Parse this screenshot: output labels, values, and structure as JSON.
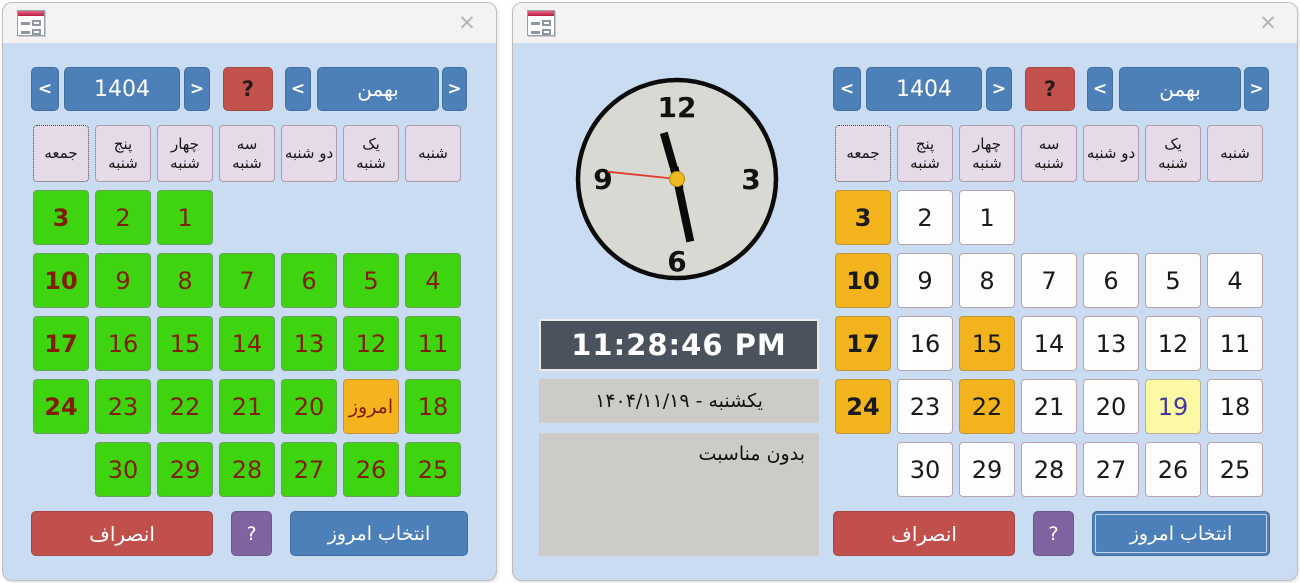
{
  "colors": {
    "window_bg": "#cadcf2",
    "titlebar_bg": "#f4f3f1",
    "accent_blue": "#4d80b8",
    "accent_red": "#c4524c",
    "accent_purple": "#8064a2",
    "green_day": "#3ed40f",
    "orange_day": "#f2b31c",
    "today_yellow": "#fbf8a4",
    "header_lavender": "#e5dae7",
    "digital_bg": "#4a525d",
    "gray_panel": "#cccbc7",
    "maroon_text": "#821d02"
  },
  "window_a": {
    "titlebar": {
      "icon": "form-window-icon",
      "close_glyph": "✕"
    },
    "selector": {
      "prev_year": "<",
      "year": "1404",
      "next_year": ">",
      "help": "?",
      "prev_month": "<",
      "month": "بهمن",
      "next_month": ">"
    },
    "weekdays": [
      {
        "label": "جمعه",
        "focused": true
      },
      {
        "label": "پنج شنبه"
      },
      {
        "label": "چهار شنبه"
      },
      {
        "label": "سه شنبه"
      },
      {
        "label": "دو شنبه"
      },
      {
        "label": "یک شنبه"
      },
      {
        "label": "شنبه"
      }
    ],
    "days": [
      {
        "row": 1,
        "col": 1,
        "label": "3",
        "kind": "friday"
      },
      {
        "row": 1,
        "col": 2,
        "label": "2"
      },
      {
        "row": 1,
        "col": 3,
        "label": "1"
      },
      {
        "row": 2,
        "col": 1,
        "label": "10",
        "kind": "friday"
      },
      {
        "row": 2,
        "col": 2,
        "label": "9"
      },
      {
        "row": 2,
        "col": 3,
        "label": "8"
      },
      {
        "row": 2,
        "col": 4,
        "label": "7"
      },
      {
        "row": 2,
        "col": 5,
        "label": "6"
      },
      {
        "row": 2,
        "col": 6,
        "label": "5"
      },
      {
        "row": 2,
        "col": 7,
        "label": "4"
      },
      {
        "row": 3,
        "col": 1,
        "label": "17",
        "kind": "friday"
      },
      {
        "row": 3,
        "col": 2,
        "label": "16"
      },
      {
        "row": 3,
        "col": 3,
        "label": "15"
      },
      {
        "row": 3,
        "col": 4,
        "label": "14"
      },
      {
        "row": 3,
        "col": 5,
        "label": "13"
      },
      {
        "row": 3,
        "col": 6,
        "label": "12"
      },
      {
        "row": 3,
        "col": 7,
        "label": "11"
      },
      {
        "row": 4,
        "col": 1,
        "label": "24",
        "kind": "friday"
      },
      {
        "row": 4,
        "col": 2,
        "label": "23"
      },
      {
        "row": 4,
        "col": 3,
        "label": "22"
      },
      {
        "row": 4,
        "col": 4,
        "label": "21"
      },
      {
        "row": 4,
        "col": 5,
        "label": "20"
      },
      {
        "row": 4,
        "col": 6,
        "label": "امروز",
        "kind": "today"
      },
      {
        "row": 4,
        "col": 7,
        "label": "18"
      },
      {
        "row": 5,
        "col": 2,
        "label": "30"
      },
      {
        "row": 5,
        "col": 3,
        "label": "29"
      },
      {
        "row": 5,
        "col": 4,
        "label": "28"
      },
      {
        "row": 5,
        "col": 5,
        "label": "27"
      },
      {
        "row": 5,
        "col": 6,
        "label": "26"
      },
      {
        "row": 5,
        "col": 7,
        "label": "25"
      }
    ],
    "footer": {
      "cancel": "انصراف",
      "help": "?",
      "select_today": "انتخاب امروز"
    }
  },
  "window_b": {
    "titlebar": {
      "icon": "form-window-icon",
      "close_glyph": "✕"
    },
    "clock": {
      "numbers": [
        "12",
        "3",
        "6",
        "9"
      ],
      "hands": {
        "hour_deg": 344,
        "minute_deg": 168,
        "second_deg": 276
      },
      "time": "11:28:46 PM",
      "date": "یکشنبه - ۱۴۰۴/۱۱/۱۹",
      "occasion": "بدون مناسبت"
    },
    "selector": {
      "prev_year": "<",
      "year": "1404",
      "next_year": ">",
      "help": "?",
      "prev_month": "<",
      "month": "بهمن",
      "next_month": ">"
    },
    "weekdays": [
      {
        "label": "جمعه",
        "focused": true
      },
      {
        "label": "پنج شنبه"
      },
      {
        "label": "چهار شنبه"
      },
      {
        "label": "سه شنبه"
      },
      {
        "label": "دو شنبه"
      },
      {
        "label": "یک شنبه"
      },
      {
        "label": "شنبه"
      }
    ],
    "days": [
      {
        "row": 1,
        "col": 1,
        "label": "3",
        "kind": "friday"
      },
      {
        "row": 1,
        "col": 2,
        "label": "2"
      },
      {
        "row": 1,
        "col": 3,
        "label": "1"
      },
      {
        "row": 2,
        "col": 1,
        "label": "10",
        "kind": "friday"
      },
      {
        "row": 2,
        "col": 2,
        "label": "9"
      },
      {
        "row": 2,
        "col": 3,
        "label": "8"
      },
      {
        "row": 2,
        "col": 4,
        "label": "7"
      },
      {
        "row": 2,
        "col": 5,
        "label": "6"
      },
      {
        "row": 2,
        "col": 6,
        "label": "5"
      },
      {
        "row": 2,
        "col": 7,
        "label": "4"
      },
      {
        "row": 3,
        "col": 1,
        "label": "17",
        "kind": "friday"
      },
      {
        "row": 3,
        "col": 2,
        "label": "16"
      },
      {
        "row": 3,
        "col": 3,
        "label": "15",
        "kind": "holiday"
      },
      {
        "row": 3,
        "col": 4,
        "label": "14"
      },
      {
        "row": 3,
        "col": 5,
        "label": "13"
      },
      {
        "row": 3,
        "col": 6,
        "label": "12"
      },
      {
        "row": 3,
        "col": 7,
        "label": "11"
      },
      {
        "row": 4,
        "col": 1,
        "label": "24",
        "kind": "friday"
      },
      {
        "row": 4,
        "col": 2,
        "label": "23"
      },
      {
        "row": 4,
        "col": 3,
        "label": "22",
        "kind": "holiday"
      },
      {
        "row": 4,
        "col": 4,
        "label": "21"
      },
      {
        "row": 4,
        "col": 5,
        "label": "20"
      },
      {
        "row": 4,
        "col": 6,
        "label": "19",
        "kind": "today"
      },
      {
        "row": 4,
        "col": 7,
        "label": "18"
      },
      {
        "row": 5,
        "col": 2,
        "label": "30"
      },
      {
        "row": 5,
        "col": 3,
        "label": "29"
      },
      {
        "row": 5,
        "col": 4,
        "label": "28"
      },
      {
        "row": 5,
        "col": 5,
        "label": "27"
      },
      {
        "row": 5,
        "col": 6,
        "label": "26"
      },
      {
        "row": 5,
        "col": 7,
        "label": "25"
      }
    ],
    "footer": {
      "cancel": "انصراف",
      "help": "?",
      "select_today": "انتخاب امروز"
    }
  }
}
